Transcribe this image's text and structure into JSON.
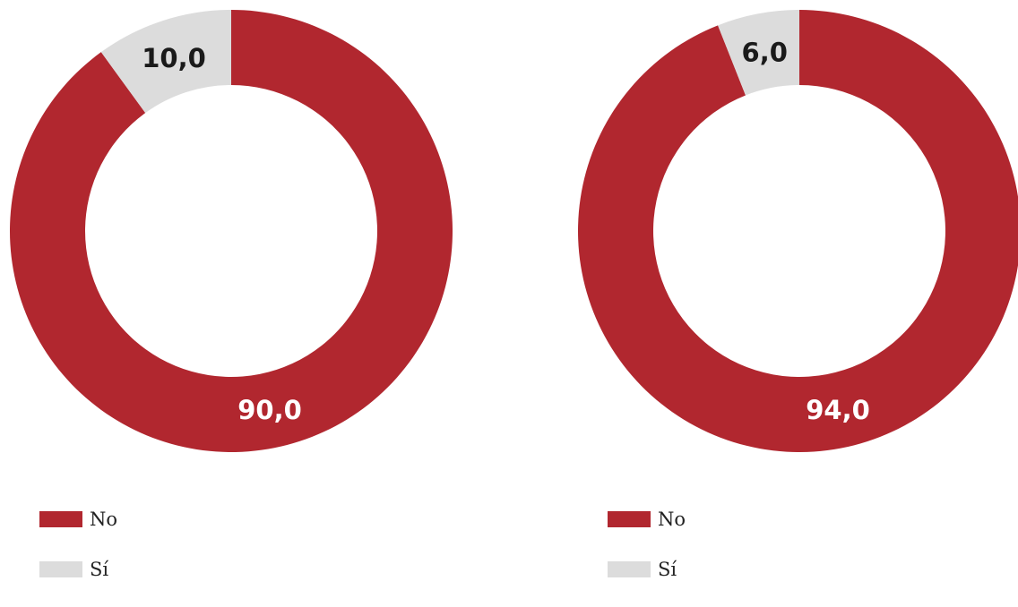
{
  "colors": {
    "no": "#b1272f",
    "si": "#dcdcdc",
    "label_light": "#ffffff",
    "label_dark": "#1a1a1a"
  },
  "chart_data": [
    {
      "type": "pie",
      "variant": "donut",
      "categories": [
        "No",
        "Sí"
      ],
      "values": [
        90.0,
        10.0
      ],
      "value_labels": [
        "90,0",
        "10,0"
      ],
      "legend": {
        "placement": "bottom-left",
        "entries": [
          "No",
          "Sí"
        ]
      }
    },
    {
      "type": "pie",
      "variant": "donut",
      "categories": [
        "No",
        "Sí"
      ],
      "values": [
        94.0,
        6.0
      ],
      "value_labels": [
        "94,0",
        "6,0"
      ],
      "legend": {
        "placement": "bottom-left",
        "entries": [
          "No",
          "Sí"
        ]
      }
    }
  ]
}
